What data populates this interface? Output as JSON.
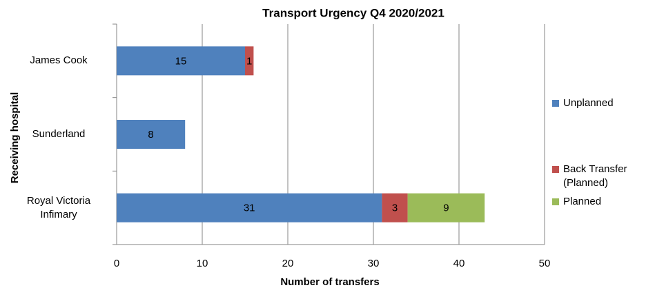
{
  "chart_data": {
    "type": "bar",
    "orientation": "horizontal",
    "stacked": true,
    "title": "Transport Urgency Q4 2020/2021",
    "x_label": "Number of transfers",
    "y_label": "Receiving hospital",
    "categories": [
      "James Cook",
      "Sunderland",
      "Royal Victoria Infimary"
    ],
    "series": [
      {
        "name": "Unplanned",
        "color": "#4f81bd",
        "values": [
          15,
          8,
          31
        ]
      },
      {
        "name": "Back Transfer (Planned)",
        "color": "#c0504d",
        "values": [
          1,
          null,
          3
        ]
      },
      {
        "name": "Planned",
        "color": "#9bbb59",
        "values": [
          null,
          null,
          9
        ]
      }
    ],
    "xlim": [
      0,
      50
    ],
    "xticks": [
      0,
      10,
      20,
      30,
      40,
      50
    ],
    "grid": true,
    "legend": "right"
  }
}
